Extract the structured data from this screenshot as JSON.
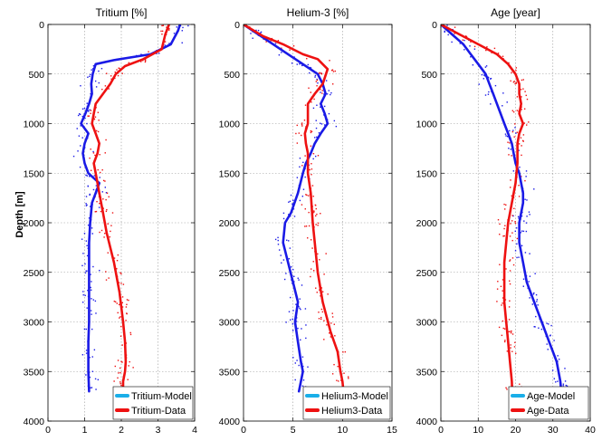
{
  "figure": {
    "ylabel": "Depth [m]",
    "ylim": [
      0,
      4000
    ],
    "yticks": [
      0,
      500,
      1000,
      1500,
      2000,
      2500,
      3000,
      3500,
      4000
    ],
    "colors": {
      "model": "#1a1ae6",
      "data": "#ee1111",
      "legend_model_swatch": "#19aee8"
    }
  },
  "chart_data": [
    {
      "type": "line",
      "title": "Tritium [%]",
      "xlim": [
        0,
        4
      ],
      "xticks": [
        0,
        1,
        2,
        3,
        4
      ],
      "ylabel": "Depth [m]",
      "grid": true,
      "legend_position": "bottom-right",
      "legend": [
        "Tritium-Model",
        "Tritium-Data"
      ],
      "series": [
        {
          "name": "Tritium-Model",
          "x": [
            3.6,
            3.55,
            3.35,
            2.8,
            1.8,
            1.3,
            1.22,
            1.18,
            1.2,
            1.12,
            1.02,
            0.9,
            1.1,
            1.0,
            0.95,
            1.0,
            1.1,
            1.4,
            1.3,
            1.2,
            1.15,
            1.12,
            1.12,
            1.12,
            1.12,
            1.12,
            1.1,
            1.1,
            1.12
          ],
          "y": [
            0,
            60,
            200,
            300,
            360,
            400,
            500,
            600,
            700,
            800,
            900,
            1000,
            1100,
            1200,
            1300,
            1400,
            1500,
            1600,
            1700,
            1800,
            2000,
            2200,
            2400,
            2600,
            2800,
            3000,
            3200,
            3500,
            3700
          ]
        },
        {
          "name": "Tritium-Data",
          "x": [
            3.3,
            3.2,
            3.1,
            2.6,
            2.1,
            1.85,
            1.7,
            1.5,
            1.3,
            1.25,
            1.2,
            1.3,
            1.4,
            1.35,
            1.25,
            1.3,
            1.4,
            1.5,
            1.6,
            1.8,
            1.95,
            2.05,
            2.1,
            2.12,
            2.1,
            2.05,
            2.05
          ],
          "y": [
            0,
            100,
            250,
            350,
            420,
            500,
            600,
            700,
            800,
            900,
            1000,
            1100,
            1200,
            1300,
            1400,
            1500,
            1700,
            1900,
            2100,
            2400,
            2700,
            3000,
            3200,
            3400,
            3500,
            3600,
            3700
          ]
        }
      ]
    },
    {
      "type": "line",
      "title": "Helium-3 [%]",
      "xlim": [
        0,
        15
      ],
      "xticks": [
        0,
        5,
        10,
        15
      ],
      "grid": true,
      "legend_position": "bottom-right",
      "legend": [
        "Helium3-Model",
        "Helium3-Data"
      ],
      "series": [
        {
          "name": "Helium3-Model",
          "x": [
            0,
            1.5,
            3,
            4.5,
            6,
            7.5,
            8,
            8.3,
            7.8,
            8.2,
            8.5,
            7.8,
            7.2,
            6.8,
            6.3,
            6.0,
            5.5,
            4.8,
            4.2,
            4.0,
            4.5,
            5.0,
            5.5,
            5.2,
            5.5,
            5.8,
            6.0,
            5.6
          ],
          "y": [
            0,
            100,
            200,
            300,
            400,
            500,
            600,
            700,
            800,
            900,
            1000,
            1100,
            1200,
            1300,
            1400,
            1500,
            1700,
            1900,
            2000,
            2200,
            2400,
            2600,
            2800,
            3000,
            3200,
            3400,
            3500,
            3700
          ]
        },
        {
          "name": "Helium3-Data",
          "x": [
            0,
            2,
            4,
            6,
            7.5,
            8.5,
            8.0,
            7.2,
            6.5,
            6.5,
            6.5,
            6.2,
            6.3,
            6.5,
            6.5,
            6.8,
            7.0,
            7.2,
            7.5,
            8.0,
            8.8,
            9.5,
            9.8,
            10.0,
            10.2
          ],
          "y": [
            0,
            120,
            200,
            300,
            350,
            450,
            600,
            700,
            800,
            900,
            1000,
            1100,
            1200,
            1300,
            1500,
            1700,
            2000,
            2200,
            2500,
            2800,
            3100,
            3300,
            3500,
            3600,
            3800
          ]
        }
      ]
    },
    {
      "type": "line",
      "title": "Age [year]",
      "xlim": [
        0,
        40
      ],
      "xticks": [
        0,
        10,
        20,
        30,
        40
      ],
      "grid": true,
      "legend_position": "bottom-right",
      "legend": [
        "Age-Model",
        "Age-Data"
      ],
      "series": [
        {
          "name": "Age-Model",
          "x": [
            0,
            3,
            6,
            8,
            10,
            12,
            13,
            14,
            15,
            16,
            17,
            18,
            19,
            19.5,
            20,
            21,
            21.5,
            22,
            22,
            21.5,
            21,
            21,
            22,
            23,
            25,
            27,
            29,
            31,
            32,
            32.5
          ],
          "y": [
            0,
            100,
            200,
            300,
            400,
            500,
            600,
            700,
            800,
            900,
            1000,
            1100,
            1200,
            1300,
            1400,
            1500,
            1600,
            1700,
            1800,
            1900,
            2000,
            2200,
            2400,
            2600,
            2800,
            3000,
            3200,
            3400,
            3600,
            3800
          ]
        },
        {
          "name": "Age-Data",
          "x": [
            0,
            5,
            10,
            15,
            18,
            20,
            21,
            21,
            21.5,
            21,
            22,
            21,
            20.5,
            20.5,
            20,
            19,
            18,
            17.5,
            17,
            17,
            17,
            17.5,
            18,
            18.5,
            19,
            19.2
          ],
          "y": [
            0,
            100,
            200,
            300,
            400,
            500,
            600,
            700,
            800,
            900,
            1000,
            1100,
            1200,
            1400,
            1600,
            1800,
            2000,
            2200,
            2400,
            2600,
            2800,
            3000,
            3200,
            3400,
            3600,
            3800
          ]
        }
      ]
    }
  ]
}
